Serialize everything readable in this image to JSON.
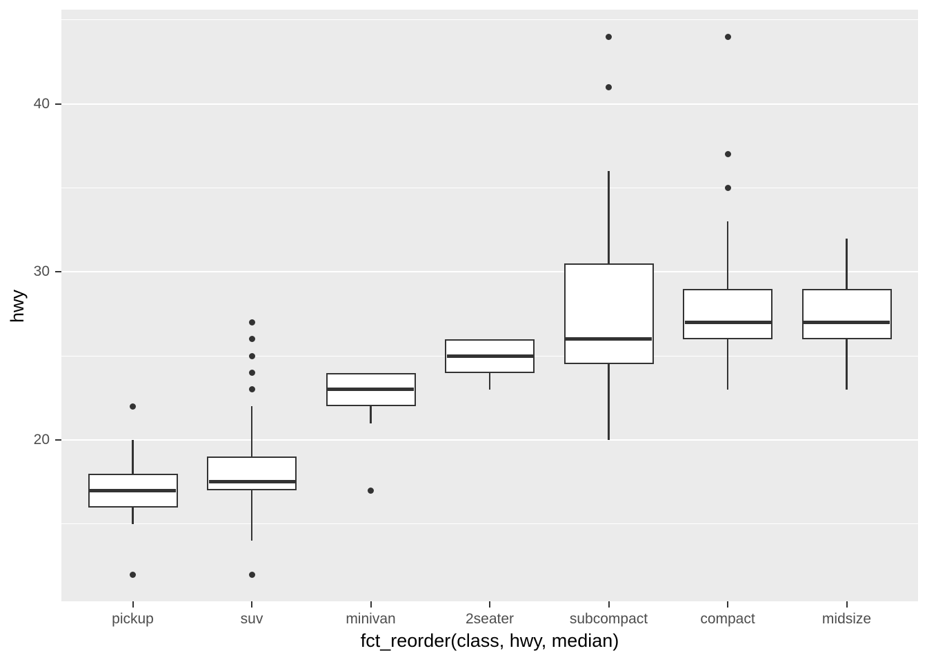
{
  "chart_data": {
    "type": "boxplot",
    "title": "",
    "xlabel": "fct_reorder(class, hwy, median)",
    "ylabel": "hwy",
    "ylim": [
      10.4,
      45.6
    ],
    "y_major_ticks": [
      "20",
      "30",
      "40"
    ],
    "y_major_values": [
      20,
      30,
      40
    ],
    "y_minor_values": [
      15,
      25,
      35,
      45
    ],
    "grid": "on",
    "legend": "none",
    "categories": [
      "pickup",
      "suv",
      "minivan",
      "2seater",
      "subcompact",
      "compact",
      "midsize"
    ],
    "series": [
      {
        "category": "pickup",
        "whisker_low": 15,
        "q1": 16,
        "median": 17,
        "q3": 18,
        "whisker_high": 20,
        "outliers": [
          12,
          22
        ]
      },
      {
        "category": "suv",
        "whisker_low": 14,
        "q1": 17,
        "median": 17.5,
        "q3": 19,
        "whisker_high": 22,
        "outliers": [
          12,
          23,
          24,
          25,
          26,
          27
        ]
      },
      {
        "category": "minivan",
        "whisker_low": 21,
        "q1": 22,
        "median": 23,
        "q3": 24,
        "whisker_high": 24,
        "outliers": [
          17
        ]
      },
      {
        "category": "2seater",
        "whisker_low": 23,
        "q1": 24,
        "median": 25,
        "q3": 26,
        "whisker_high": 26,
        "outliers": []
      },
      {
        "category": "subcompact",
        "whisker_low": 20,
        "q1": 24.5,
        "median": 26,
        "q3": 30.5,
        "whisker_high": 36,
        "outliers": [
          41,
          44
        ]
      },
      {
        "category": "compact",
        "whisker_low": 23,
        "q1": 26,
        "median": 27,
        "q3": 29,
        "whisker_high": 33,
        "outliers": [
          35,
          37,
          44
        ]
      },
      {
        "category": "midsize",
        "whisker_low": 23,
        "q1": 26,
        "median": 27,
        "q3": 29,
        "whisker_high": 32,
        "outliers": []
      }
    ],
    "colors": {
      "panel_background": "#EBEBEB",
      "gridline": "#FFFFFF",
      "box_stroke": "#333333",
      "box_fill": "#FFFFFF",
      "outlier": "#333333",
      "tick_text": "#4D4D4D",
      "axis_title_text": "#000000"
    }
  }
}
